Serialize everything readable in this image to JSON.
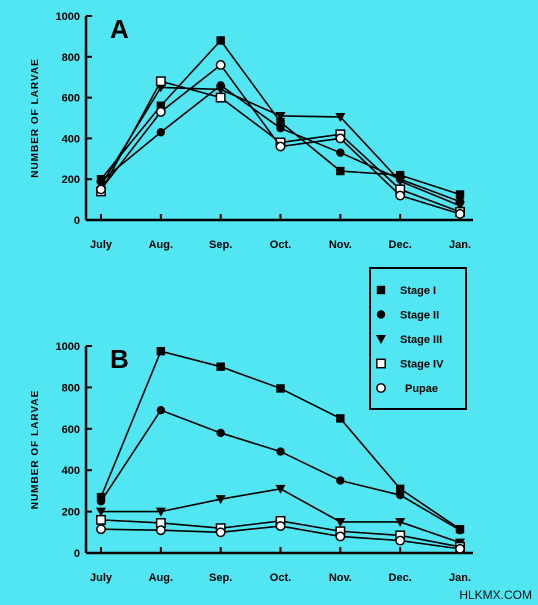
{
  "chart_data": [
    {
      "type": "line",
      "panel_label": "A",
      "ylabel": "NUMBER OF LARVAE",
      "categories": [
        "July",
        "Aug.",
        "Sep.",
        "Oct.",
        "Nov.",
        "Dec.",
        "Jan."
      ],
      "yticks": [
        0,
        200,
        400,
        600,
        800,
        1000
      ],
      "ylim": [
        0,
        1000
      ],
      "grid": false,
      "series": [
        {
          "name": "Stage I",
          "marker": "square-filled",
          "values": [
            200,
            560,
            880,
            480,
            240,
            220,
            125
          ]
        },
        {
          "name": "Stage II",
          "marker": "circle-filled",
          "values": [
            190,
            430,
            660,
            450,
            330,
            200,
            90
          ]
        },
        {
          "name": "Stage III",
          "marker": "triangle-down-filled",
          "values": [
            170,
            650,
            640,
            510,
            505,
            190,
            70
          ]
        },
        {
          "name": "Stage IV",
          "marker": "square-open",
          "values": [
            140,
            680,
            600,
            380,
            420,
            150,
            40
          ]
        },
        {
          "name": "Pupae",
          "marker": "circle-open",
          "values": [
            150,
            530,
            760,
            360,
            400,
            120,
            30
          ]
        }
      ]
    },
    {
      "type": "line",
      "panel_label": "B",
      "ylabel": "NUMBER OF LARVAE",
      "categories": [
        "July",
        "Aug.",
        "Sep.",
        "Oct.",
        "Nov.",
        "Dec.",
        "Jan."
      ],
      "yticks": [
        0,
        200,
        400,
        600,
        800,
        1000
      ],
      "ylim": [
        0,
        1000
      ],
      "grid": false,
      "legend_position": "top-right",
      "series": [
        {
          "name": "Stage I",
          "marker": "square-filled",
          "values": [
            270,
            975,
            900,
            795,
            650,
            310,
            115
          ]
        },
        {
          "name": "Stage II",
          "marker": "circle-filled",
          "values": [
            250,
            690,
            580,
            490,
            350,
            280,
            110
          ]
        },
        {
          "name": "Stage III",
          "marker": "triangle-down-filled",
          "values": [
            200,
            200,
            260,
            310,
            150,
            150,
            50
          ]
        },
        {
          "name": "Stage IV",
          "marker": "square-open",
          "values": [
            160,
            145,
            120,
            155,
            105,
            85,
            30
          ]
        },
        {
          "name": "Pupae",
          "marker": "circle-open",
          "values": [
            115,
            110,
            100,
            130,
            80,
            60,
            20
          ]
        }
      ]
    }
  ],
  "legend": {
    "items": [
      {
        "label": "Stage I",
        "marker": "square-filled"
      },
      {
        "label": "Stage II",
        "marker": "circle-filled"
      },
      {
        "label": "Stage III",
        "marker": "triangle-down-filled"
      },
      {
        "label": "Stage IV",
        "marker": "square-open"
      },
      {
        "label": "Pupae",
        "marker": "circle-open"
      }
    ]
  },
  "watermark": "HLKMX.COM",
  "colors": {
    "background": "#52e6f2",
    "ink": "#000000"
  }
}
